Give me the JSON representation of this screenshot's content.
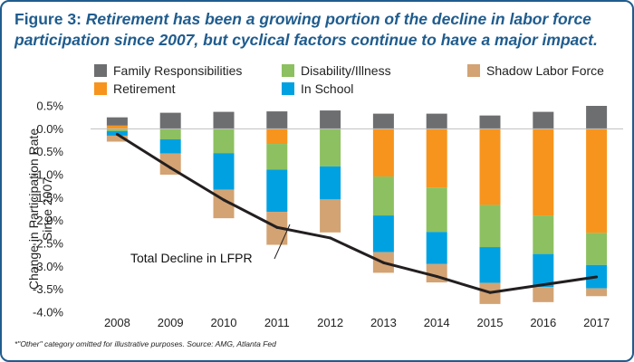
{
  "figure": {
    "label": "Figure 3:",
    "title": "Retirement has been a growing portion of the decline in labor force participation since 2007, but cyclical factors continue to have a major impact.",
    "footnote": "*\"Other\" category omitted for illustrative purposes. Source: AMG, Atlanta Fed"
  },
  "chart_data": {
    "type": "bar",
    "stacked": true,
    "categories": [
      "2008",
      "2009",
      "2010",
      "2011",
      "2012",
      "2013",
      "2014",
      "2015",
      "2016",
      "2017"
    ],
    "ylabel": "Change in Participation Rate Since 2007",
    "ylim": [
      -4.0,
      0.5
    ],
    "yticks": [
      "0.5%",
      "0.0%",
      "-0.5%",
      "-1.0%",
      "-1.5%",
      "-2.0%",
      "-2.5%",
      "-3.0%",
      "-3.5%",
      "-4.0%"
    ],
    "ytick_values": [
      0.5,
      0.0,
      -0.5,
      -1.0,
      -1.5,
      -2.0,
      -2.5,
      -3.0,
      -3.5,
      -4.0
    ],
    "legend": [
      {
        "name": "Family Responsibilities",
        "color": "#6d6e70"
      },
      {
        "name": "Disability/Illness",
        "color": "#8dc060"
      },
      {
        "name": "Shadow Labor Force",
        "color": "#d3a373"
      },
      {
        "name": "Retirement",
        "color": "#f7941d"
      },
      {
        "name": "In School",
        "color": "#00a1e1"
      }
    ],
    "positive_series": [
      {
        "name": "Retirement",
        "color": "#f7941d",
        "values": [
          0.07,
          0,
          0,
          0,
          0,
          0,
          0,
          0,
          0,
          0
        ]
      },
      {
        "name": "Family Responsibilities",
        "color": "#6d6e70",
        "values": [
          0.18,
          0.35,
          0.37,
          0.38,
          0.4,
          0.33,
          0.33,
          0.29,
          0.37,
          0.5
        ]
      }
    ],
    "negative_series": [
      {
        "name": "Retirement",
        "color": "#f7941d",
        "values": [
          0,
          0,
          0,
          -0.33,
          0,
          -1.04,
          -1.28,
          -1.66,
          -1.89,
          -2.27
        ]
      },
      {
        "name": "Disability/Illness",
        "color": "#8dc060",
        "values": [
          -0.05,
          -0.23,
          -0.53,
          -0.56,
          -0.82,
          -0.85,
          -0.97,
          -0.92,
          -0.84,
          -0.7
        ]
      },
      {
        "name": "In School",
        "color": "#00a1e1",
        "values": [
          -0.1,
          -0.31,
          -0.8,
          -0.92,
          -0.72,
          -0.8,
          -0.7,
          -0.78,
          -0.72,
          -0.51
        ]
      },
      {
        "name": "Shadow Labor Force",
        "color": "#d3a373",
        "values": [
          -0.13,
          -0.46,
          -0.62,
          -0.72,
          -0.72,
          -0.45,
          -0.4,
          -0.46,
          -0.33,
          -0.17
        ]
      }
    ],
    "line": {
      "name": "Total Decline in LFPR",
      "color": "#231f20",
      "values": [
        -0.12,
        -0.85,
        -1.55,
        -2.15,
        -2.38,
        -2.92,
        -3.22,
        -3.57,
        -3.4,
        -3.23
      ],
      "annotation": "Total Decline in LFPR"
    },
    "grid": false
  }
}
